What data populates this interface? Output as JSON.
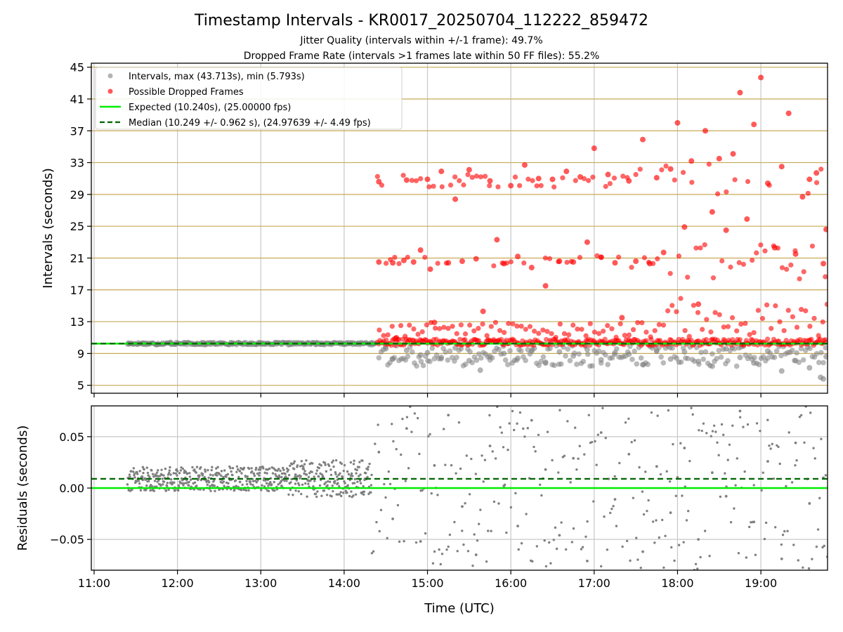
{
  "figure": {
    "title": "Timestamp Intervals - KR0017_20250704_112222_859472",
    "subtitle_1": "Jitter Quality (intervals within +/-1 frame): 49.7%",
    "subtitle_2": "Dropped Frame Rate (intervals >1 frames late within 50 FF files): 55.2%"
  },
  "colors": {
    "intervals": "#808080",
    "dropped": "#ff0000",
    "expected": "#00ee00",
    "median": "#006400",
    "hgrid": "#c8aa55",
    "vgrid": "#c8c8c8"
  },
  "chart_data": [
    {
      "type": "scatter",
      "ylabel": "Intervals (seconds)",
      "xlim": [
        "10:58",
        "19:48"
      ],
      "ylim": [
        4,
        45.5
      ],
      "y_ticks": [
        5,
        9,
        13,
        17,
        21,
        25,
        29,
        33,
        37,
        41,
        45
      ],
      "y_tick_labels": [
        "5",
        "9",
        "13",
        "17",
        "21",
        "25",
        "29",
        "33",
        "37",
        "41",
        "45"
      ],
      "grid": true,
      "legend_position": "top-left",
      "legend": [
        "Intervals, max (43.713s), min (5.793s)",
        "Possible Dropped Frames",
        "Expected (10.240s), (25.00000 fps)",
        "Median (10.249 +/- 0.962 s), (24.97639 +/- 4.49 fps)"
      ],
      "series": [
        {
          "name": "Intervals, max (43.713s), min (5.793s)",
          "color": "#808080",
          "points": [
            [
              "11:25",
              10.2
            ],
            [
              "11:35",
              10.3
            ],
            [
              "11:45",
              10.1
            ],
            [
              "11:55",
              10.4
            ],
            [
              "12:05",
              10.2
            ],
            [
              "12:20",
              10.1
            ],
            [
              "12:40",
              10.3
            ],
            [
              "13:00",
              10.2
            ],
            [
              "13:20",
              10.1
            ],
            [
              "13:40",
              10.3
            ],
            [
              "14:00",
              10.2
            ],
            [
              "14:20",
              10.1
            ],
            [
              "14:30",
              9.6
            ],
            [
              "14:35",
              8.3
            ],
            [
              "14:45",
              9.4
            ],
            [
              "14:55",
              8.8
            ],
            [
              "15:00",
              9.1
            ],
            [
              "15:10",
              8.5
            ],
            [
              "15:20",
              9.7
            ],
            [
              "15:30",
              8.1
            ],
            [
              "15:38",
              6.9
            ],
            [
              "15:45",
              8.6
            ],
            [
              "15:55",
              9.0
            ],
            [
              "16:05",
              8.4
            ],
            [
              "16:15",
              9.3
            ],
            [
              "16:25",
              7.9
            ],
            [
              "16:35",
              9.2
            ],
            [
              "16:45",
              8.7
            ],
            [
              "16:55",
              9.5
            ],
            [
              "17:05",
              8.2
            ],
            [
              "17:15",
              9.1
            ],
            [
              "17:25",
              8.9
            ],
            [
              "17:35",
              7.6
            ],
            [
              "17:45",
              9.4
            ],
            [
              "17:55",
              8.3
            ],
            [
              "18:05",
              9.2
            ],
            [
              "18:15",
              8.0
            ],
            [
              "18:25",
              7.4
            ],
            [
              "18:35",
              9.6
            ],
            [
              "18:45",
              8.5
            ],
            [
              "18:55",
              7.8
            ],
            [
              "19:05",
              9.3
            ],
            [
              "19:15",
              6.8
            ],
            [
              "19:25",
              8.1
            ],
            [
              "19:35",
              7.2
            ],
            [
              "19:43",
              6.0
            ],
            [
              "19:45",
              5.8
            ],
            [
              "19:47",
              8.6
            ]
          ]
        },
        {
          "name": "Possible Dropped Frames",
          "color": "#ff0000",
          "points": [
            [
              "14:25",
              20.5
            ],
            [
              "14:25",
              30.6
            ],
            [
              "14:35",
              20.4
            ],
            [
              "14:37",
              10.9
            ],
            [
              "14:43",
              20.7
            ],
            [
              "14:45",
              30.8
            ],
            [
              "14:50",
              20.5
            ],
            [
              "14:55",
              22.0
            ],
            [
              "15:00",
              30.9
            ],
            [
              "15:02",
              19.6
            ],
            [
              "15:05",
              12.9
            ],
            [
              "15:10",
              31.9
            ],
            [
              "15:15",
              20.4
            ],
            [
              "15:20",
              28.4
            ],
            [
              "15:25",
              20.6
            ],
            [
              "15:30",
              32.1
            ],
            [
              "15:35",
              20.9
            ],
            [
              "15:40",
              14.3
            ],
            [
              "15:45",
              30.7
            ],
            [
              "15:50",
              23.3
            ],
            [
              "15:55",
              20.3
            ],
            [
              "16:00",
              30.1
            ],
            [
              "16:05",
              21.2
            ],
            [
              "16:10",
              32.7
            ],
            [
              "16:15",
              19.8
            ],
            [
              "16:20",
              31.0
            ],
            [
              "16:25",
              17.5
            ],
            [
              "16:30",
              30.9
            ],
            [
              "16:35",
              20.6
            ],
            [
              "16:40",
              31.9
            ],
            [
              "16:45",
              20.5
            ],
            [
              "16:50",
              31.2
            ],
            [
              "16:55",
              23.0
            ],
            [
              "17:00",
              34.8
            ],
            [
              "17:05",
              21.1
            ],
            [
              "17:10",
              31.5
            ],
            [
              "17:15",
              20.4
            ],
            [
              "17:20",
              13.5
            ],
            [
              "17:25",
              30.7
            ],
            [
              "17:30",
              20.6
            ],
            [
              "17:35",
              35.9
            ],
            [
              "17:40",
              20.3
            ],
            [
              "17:45",
              31.1
            ],
            [
              "17:50",
              21.7
            ],
            [
              "17:55",
              32.2
            ],
            [
              "18:00",
              38.0
            ],
            [
              "18:05",
              24.9
            ],
            [
              "18:10",
              33.2
            ],
            [
              "18:15",
              15.2
            ],
            [
              "18:20",
              37.0
            ],
            [
              "18:25",
              26.8
            ],
            [
              "18:30",
              33.5
            ],
            [
              "18:35",
              24.5
            ],
            [
              "18:40",
              34.1
            ],
            [
              "18:45",
              41.8
            ],
            [
              "18:50",
              25.9
            ],
            [
              "18:55",
              37.8
            ],
            [
              "19:00",
              43.7
            ],
            [
              "19:05",
              30.4
            ],
            [
              "19:10",
              22.3
            ],
            [
              "19:15",
              32.5
            ],
            [
              "19:20",
              39.2
            ],
            [
              "19:25",
              21.5
            ],
            [
              "19:30",
              28.7
            ],
            [
              "19:35",
              30.9
            ],
            [
              "19:40",
              31.7
            ],
            [
              "19:45",
              20.3
            ],
            [
              "19:47",
              24.6
            ]
          ]
        }
      ],
      "lines": [
        {
          "name": "Expected (10.240s), (25.00000 fps)",
          "y": 10.24,
          "color": "#00ee00",
          "style": "solid"
        },
        {
          "name": "Median (10.249 +/- 0.962 s), (24.97639 +/- 4.49 fps)",
          "y": 10.249,
          "color": "#006400",
          "style": "dashed"
        }
      ]
    },
    {
      "type": "scatter",
      "xlabel": "Time (UTC)",
      "ylabel": "Residuals (seconds)",
      "xlim": [
        "10:58",
        "19:48"
      ],
      "ylim": [
        -0.08,
        0.08
      ],
      "x_ticks": [
        "11:00",
        "12:00",
        "13:00",
        "14:00",
        "15:00",
        "16:00",
        "17:00",
        "18:00",
        "19:00"
      ],
      "y_ticks": [
        -0.05,
        0.0,
        0.05
      ],
      "y_tick_labels": [
        "−0.05",
        "0.00",
        "0.05"
      ],
      "grid": true,
      "series": [
        {
          "name": "",
          "color": "#808080",
          "points": [
            [
              "11:25",
              0.01
            ],
            [
              "11:35",
              0.008
            ],
            [
              "11:45",
              0.012
            ],
            [
              "11:55",
              0.005
            ],
            [
              "12:05",
              0.015
            ],
            [
              "12:15",
              0.009
            ],
            [
              "12:25",
              0.003
            ],
            [
              "12:35",
              0.011
            ],
            [
              "12:45",
              0.006
            ],
            [
              "12:55",
              0.014
            ],
            [
              "13:05",
              0.008
            ],
            [
              "13:15",
              0.002
            ],
            [
              "13:25",
              0.013
            ],
            [
              "13:35",
              0.007
            ],
            [
              "13:45",
              0.01
            ],
            [
              "13:55",
              0.004
            ],
            [
              "14:05",
              0.012
            ],
            [
              "14:15",
              0.009
            ],
            [
              "14:25",
              0.035
            ],
            [
              "14:35",
              -0.03
            ],
            [
              "14:45",
              0.058
            ],
            [
              "14:55",
              -0.052
            ],
            [
              "15:05",
              0.022
            ],
            [
              "15:15",
              0.071
            ],
            [
              "15:25",
              -0.018
            ],
            [
              "15:35",
              -0.065
            ],
            [
              "15:45",
              0.041
            ],
            [
              "15:55",
              0.002
            ],
            [
              "16:05",
              -0.037
            ],
            [
              "16:15",
              0.066
            ],
            [
              "16:25",
              0.018
            ],
            [
              "16:35",
              -0.046
            ],
            [
              "16:45",
              0.029
            ],
            [
              "16:55",
              -0.071
            ],
            [
              "17:05",
              0.054
            ],
            [
              "17:15",
              -0.011
            ],
            [
              "17:25",
              0.033
            ],
            [
              "17:35",
              -0.062
            ],
            [
              "17:45",
              0.021
            ],
            [
              "17:55",
              -0.024
            ],
            [
              "18:05",
              0.039
            ],
            [
              "18:15",
              -0.05
            ],
            [
              "18:25",
              0.015
            ],
            [
              "18:35",
              -0.008
            ],
            [
              "18:45",
              0.075
            ],
            [
              "18:55",
              -0.033
            ],
            [
              "19:05",
              0.026
            ],
            [
              "19:15",
              -0.069
            ],
            [
              "19:25",
              0.044
            ],
            [
              "19:35",
              -0.015
            ],
            [
              "19:45",
              0.01
            ]
          ]
        }
      ],
      "lines": [
        {
          "name": "",
          "y": 0.009,
          "color": "#006400",
          "style": "dashed"
        },
        {
          "name": "",
          "y": 0.0,
          "color": "#00ee00",
          "style": "solid"
        }
      ]
    }
  ]
}
